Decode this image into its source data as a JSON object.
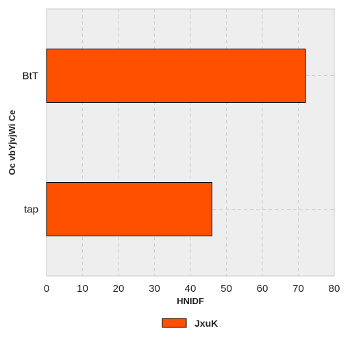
{
  "chart_data": {
    "type": "bar",
    "orientation": "horizontal",
    "categories": [
      "BtT",
      "tap"
    ],
    "series": [
      {
        "name": "JxuK",
        "values": [
          72,
          46
        ],
        "color": "#ff5000"
      }
    ],
    "xlabel": "HNIDF",
    "ylabel": "Oc vbYjvjWi Ce",
    "xlim": [
      0,
      80
    ],
    "xticks": [
      0,
      10,
      20,
      30,
      40,
      50,
      60,
      70,
      80
    ],
    "grid": true,
    "legend_position": "bottom-center",
    "plot_background": "#eeeeee",
    "gridline_color": "#cccccc"
  }
}
